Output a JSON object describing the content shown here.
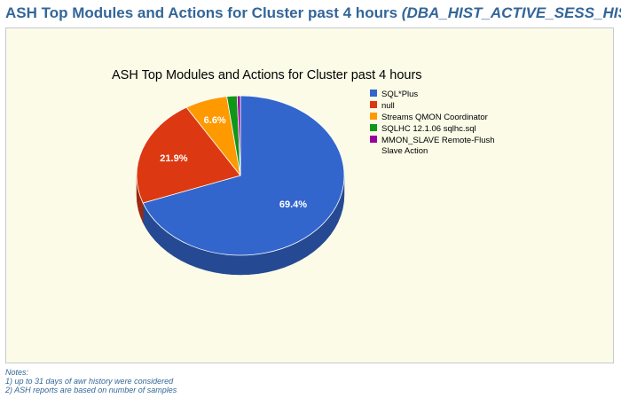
{
  "page": {
    "heading": "ASH Top Modules and Actions for Cluster past 4 hours",
    "heading_sub": "(DBA_HIST_ACTIVE_SESS_HISTOI"
  },
  "chart_data": {
    "type": "pie",
    "title": "ASH Top Modules and Actions for Cluster past 4 hours",
    "three_d": true,
    "legend_position": "right",
    "slices": [
      {
        "name": "SQL*Plus",
        "value": 69.4,
        "label": "69.4%",
        "color": "#3366cc"
      },
      {
        "name": "null",
        "value": 21.9,
        "label": "21.9%",
        "color": "#dc3912"
      },
      {
        "name": "Streams QMON Coordinator",
        "value": 6.6,
        "label": "6.6%",
        "color": "#ff9900"
      },
      {
        "name": "SQLHC 12.1.06 sqlhc.sql",
        "value": 1.6,
        "label": "",
        "color": "#109618"
      },
      {
        "name": "MMON_SLAVE Remote-Flush Slave Action",
        "value": 0.5,
        "label": "",
        "color": "#990099"
      }
    ],
    "legend_lines": [
      [
        "SQL*Plus"
      ],
      [
        "null"
      ],
      [
        "Streams QMON Coordinator"
      ],
      [
        "SQLHC 12.1.06 sqlhc.sql"
      ],
      [
        "MMON_SLAVE Remote-Flush",
        "Slave Action"
      ]
    ]
  },
  "notes": {
    "title": "Notes:",
    "items": [
      "1) up to 31 days of awr history were considered",
      "2) ASH reports are based on number of samples"
    ]
  }
}
